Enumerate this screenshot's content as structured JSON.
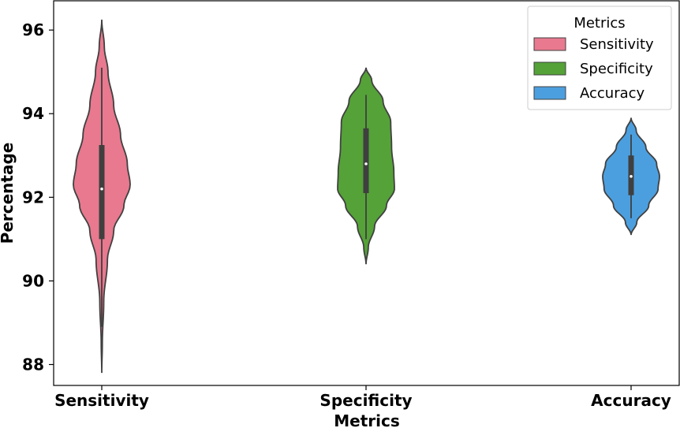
{
  "chart_data": {
    "type": "violin",
    "xlabel": "Metrics",
    "ylabel": "Percentage",
    "ylim": [
      87.5,
      96.7
    ],
    "yticks": [
      88,
      90,
      92,
      94,
      96
    ],
    "categories": [
      "Sensitivity",
      "Specificity",
      "Accuracy"
    ],
    "legend": {
      "title": "Metrics",
      "position": "top-right",
      "entries": [
        "Sensitivity",
        "Specificity",
        "Accuracy"
      ]
    },
    "series": [
      {
        "name": "Sensitivity",
        "color": "#e8798f",
        "min": 87.8,
        "max": 96.25,
        "whisker_low": 88.9,
        "whisker_high": 95.1,
        "q1": 91.0,
        "median": 92.2,
        "q3": 93.25,
        "density": [
          [
            87.8,
            0.0
          ],
          [
            88.5,
            0.02
          ],
          [
            89.5,
            0.07
          ],
          [
            90.5,
            0.2
          ],
          [
            91.2,
            0.42
          ],
          [
            91.8,
            0.78
          ],
          [
            92.3,
            1.0
          ],
          [
            92.8,
            0.9
          ],
          [
            93.5,
            0.66
          ],
          [
            94.2,
            0.42
          ],
          [
            95.0,
            0.22
          ],
          [
            95.6,
            0.09
          ],
          [
            96.25,
            0.0
          ]
        ]
      },
      {
        "name": "Specificity",
        "color": "#55a238",
        "min": 90.4,
        "max": 95.1,
        "whisker_low": 91.0,
        "whisker_high": 94.45,
        "q1": 92.1,
        "median": 92.8,
        "q3": 93.65,
        "density": [
          [
            90.4,
            0.0
          ],
          [
            90.8,
            0.08
          ],
          [
            91.3,
            0.3
          ],
          [
            91.8,
            0.72
          ],
          [
            92.2,
            1.0
          ],
          [
            92.6,
            0.98
          ],
          [
            93.2,
            0.9
          ],
          [
            93.8,
            0.87
          ],
          [
            94.3,
            0.6
          ],
          [
            94.8,
            0.2
          ],
          [
            95.1,
            0.0
          ]
        ]
      },
      {
        "name": "Accuracy",
        "color": "#4c9fdf",
        "min": 91.1,
        "max": 93.9,
        "whisker_low": 91.5,
        "whisker_high": 93.5,
        "q1": 92.05,
        "median": 92.5,
        "q3": 93.0,
        "density": [
          [
            91.1,
            0.0
          ],
          [
            91.4,
            0.2
          ],
          [
            91.8,
            0.62
          ],
          [
            92.2,
            0.95
          ],
          [
            92.5,
            1.0
          ],
          [
            92.8,
            0.9
          ],
          [
            93.2,
            0.52
          ],
          [
            93.6,
            0.18
          ],
          [
            93.9,
            0.0
          ]
        ]
      }
    ]
  }
}
